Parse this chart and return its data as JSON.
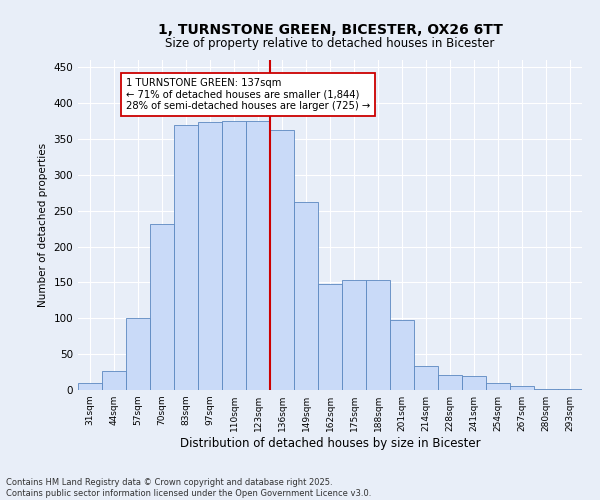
{
  "title": "1, TURNSTONE GREEN, BICESTER, OX26 6TT",
  "subtitle": "Size of property relative to detached houses in Bicester",
  "xlabel": "Distribution of detached houses by size in Bicester",
  "ylabel": "Number of detached properties",
  "bins": [
    "31sqm",
    "44sqm",
    "57sqm",
    "70sqm",
    "83sqm",
    "97sqm",
    "110sqm",
    "123sqm",
    "136sqm",
    "149sqm",
    "162sqm",
    "175sqm",
    "188sqm",
    "201sqm",
    "214sqm",
    "228sqm",
    "241sqm",
    "254sqm",
    "267sqm",
    "280sqm",
    "293sqm"
  ],
  "values": [
    10,
    26,
    101,
    231,
    370,
    374,
    375,
    375,
    363,
    262,
    148,
    154,
    154,
    97,
    33,
    21,
    20,
    10,
    5,
    2,
    2
  ],
  "bar_color": "#c9daf8",
  "bar_edge_color": "#5b88c0",
  "property_line_x": 8,
  "annotation_text": "1 TURNSTONE GREEN: 137sqm\n← 71% of detached houses are smaller (1,844)\n28% of semi-detached houses are larger (725) →",
  "annotation_box_color": "#ffffff",
  "annotation_box_edge_color": "#cc0000",
  "vline_color": "#cc0000",
  "footer": "Contains HM Land Registry data © Crown copyright and database right 2025.\nContains public sector information licensed under the Open Government Licence v3.0.",
  "bg_color": "#e8eef8",
  "grid_color": "#ffffff",
  "ylim": [
    0,
    460
  ],
  "yticks": [
    0,
    50,
    100,
    150,
    200,
    250,
    300,
    350,
    400,
    450
  ]
}
